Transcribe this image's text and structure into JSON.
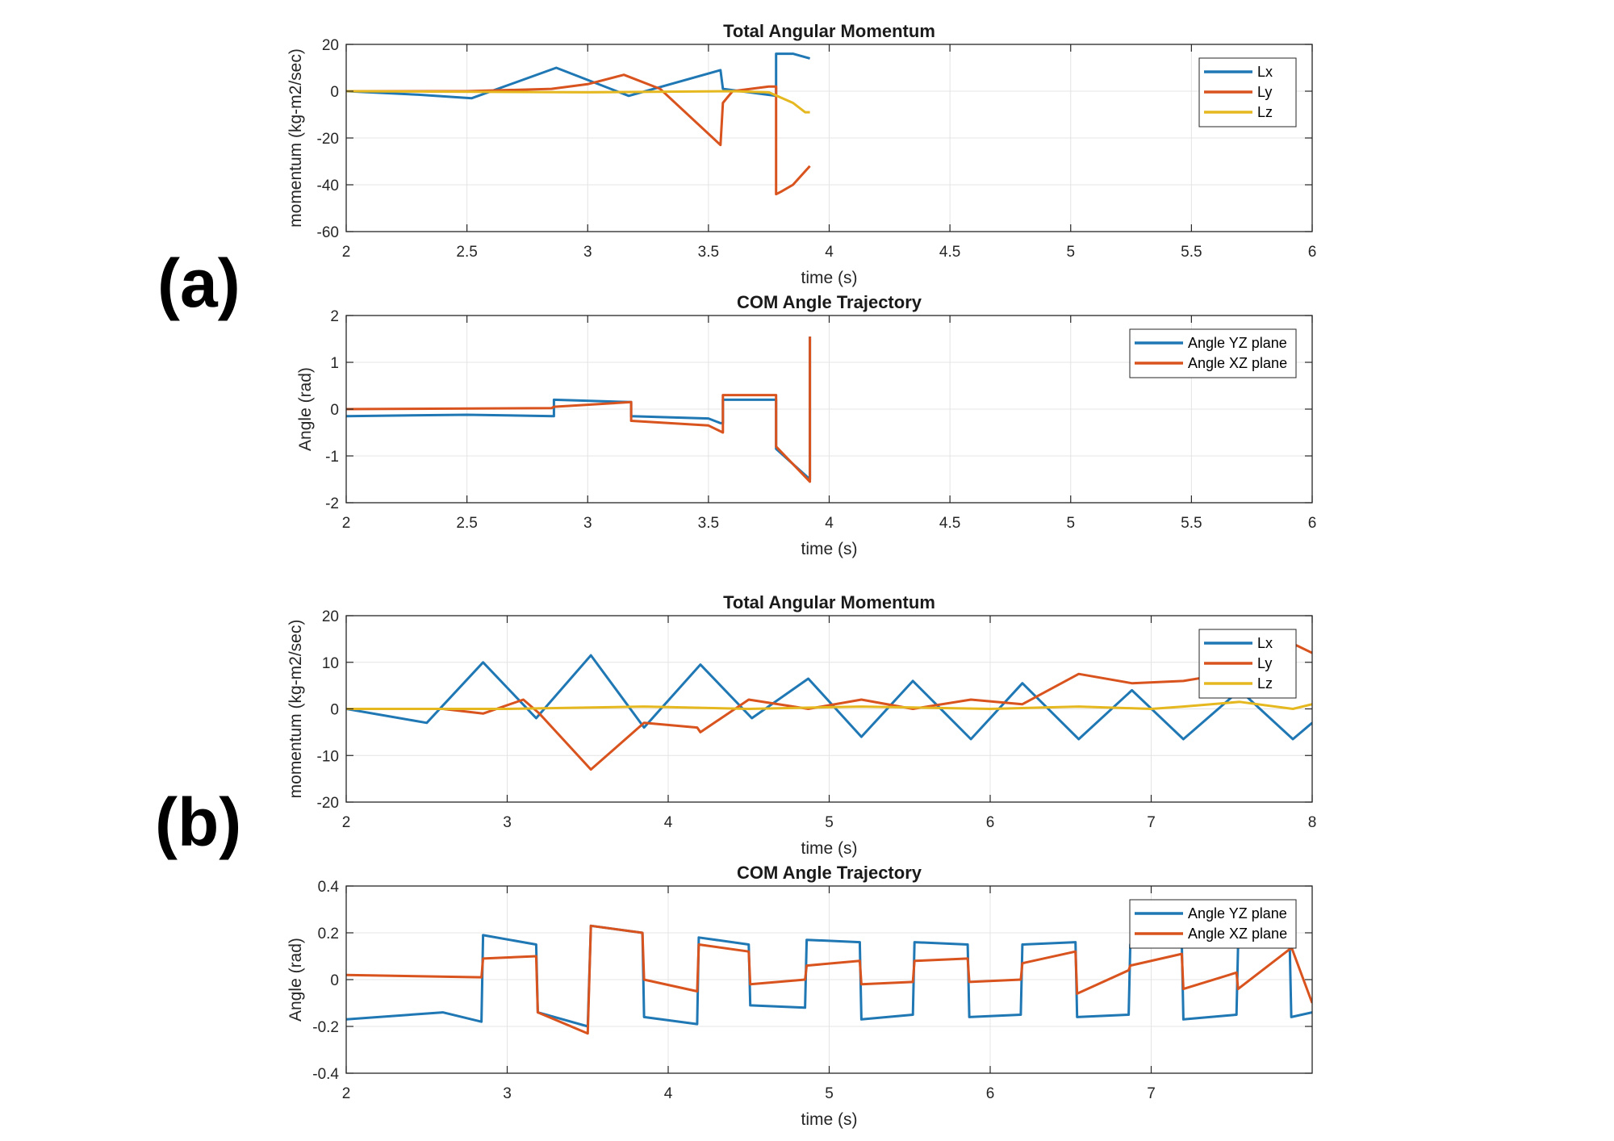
{
  "panel_labels": [
    "(a)",
    "(b)"
  ],
  "colors": {
    "Lx": "#1f77b4",
    "Ly": "#d9531e",
    "Lz": "#e6b820",
    "yz": "#1f77b4",
    "xz": "#d9531e",
    "grid": "#e4e4e4",
    "axis": "#262626"
  },
  "chart_data": [
    {
      "type": "line",
      "title": "Total Angular Momentum",
      "xlabel": "time (s)",
      "ylabel": "momentum (kg-m2/sec)",
      "xlim": [
        2,
        6
      ],
      "ylim": [
        -60,
        20
      ],
      "xticks": [
        2,
        2.5,
        3,
        3.5,
        4,
        4.5,
        5,
        5.5,
        6
      ],
      "yticks": [
        -60,
        -40,
        -20,
        0,
        20
      ],
      "legend": "top-right",
      "series": [
        {
          "name": "Lx",
          "color": "Lx",
          "x": [
            2,
            2.3,
            2.52,
            2.87,
            3.17,
            3.55,
            3.56,
            3.78,
            3.78,
            3.85,
            3.92
          ],
          "y": [
            0,
            -1.5,
            -3,
            10,
            -2,
            9,
            1,
            -2,
            16,
            16,
            14
          ]
        },
        {
          "name": "Ly",
          "color": "Ly",
          "x": [
            2,
            2.5,
            2.85,
            3.0,
            3.15,
            3.3,
            3.55,
            3.56,
            3.6,
            3.75,
            3.78,
            3.78,
            3.8,
            3.85,
            3.92
          ],
          "y": [
            0,
            0,
            1,
            3,
            7,
            1,
            -23,
            -5,
            0,
            2,
            2,
            -44,
            -43,
            -40,
            -32
          ]
        },
        {
          "name": "Lz",
          "color": "Lz",
          "x": [
            2,
            3.0,
            3.6,
            3.75,
            3.85,
            3.9,
            3.92
          ],
          "y": [
            0,
            -0.5,
            0,
            -0.5,
            -5,
            -9,
            -9
          ]
        }
      ]
    },
    {
      "type": "line",
      "title": "COM Angle Trajectory",
      "xlabel": "time (s)",
      "ylabel": "Angle (rad)",
      "xlim": [
        2,
        6
      ],
      "ylim": [
        -2,
        2
      ],
      "xticks": [
        2,
        2.5,
        3,
        3.5,
        4,
        4.5,
        5,
        5.5,
        6
      ],
      "yticks": [
        -2,
        -1,
        0,
        1,
        2
      ],
      "legend": "top-right",
      "series": [
        {
          "name": "Angle YZ plane",
          "color": "yz",
          "x": [
            2,
            2.5,
            2.86,
            2.86,
            3.18,
            3.18,
            3.5,
            3.55,
            3.56,
            3.56,
            3.78,
            3.78,
            3.92,
            3.92
          ],
          "y": [
            -0.15,
            -0.12,
            -0.15,
            0.2,
            0.15,
            -0.15,
            -0.2,
            -0.3,
            -0.3,
            0.2,
            0.2,
            -0.85,
            -1.5,
            1.55
          ]
        },
        {
          "name": "Angle XZ plane",
          "color": "xz",
          "x": [
            2,
            2.85,
            2.86,
            3.18,
            3.18,
            3.5,
            3.56,
            3.56,
            3.78,
            3.78,
            3.92,
            3.92
          ],
          "y": [
            0,
            0.02,
            0.05,
            0.15,
            -0.25,
            -0.35,
            -0.5,
            0.3,
            0.3,
            -0.8,
            -1.55,
            1.55
          ]
        }
      ]
    },
    {
      "type": "line",
      "title": "Total Angular Momentum",
      "xlabel": "time (s)",
      "ylabel": "momentum (kg-m2/sec)",
      "xlim": [
        2,
        8
      ],
      "ylim": [
        -20,
        20
      ],
      "xticks": [
        2,
        3,
        4,
        5,
        6,
        7,
        8
      ],
      "yticks": [
        -20,
        -10,
        0,
        10,
        20
      ],
      "legend": "top-right",
      "series": [
        {
          "name": "Lx",
          "color": "Lx",
          "x": [
            2,
            2.5,
            2.85,
            3.18,
            3.52,
            3.85,
            4.2,
            4.52,
            4.87,
            5.2,
            5.52,
            5.88,
            6.2,
            6.55,
            6.88,
            7.2,
            7.55,
            7.88,
            8
          ],
          "y": [
            0,
            -3,
            10,
            -2,
            11.5,
            -4,
            9.5,
            -2,
            6.5,
            -6,
            6,
            -6.5,
            5.5,
            -6.5,
            4,
            -6.5,
            4,
            -6.5,
            -3
          ]
        },
        {
          "name": "Ly",
          "color": "Ly",
          "x": [
            2,
            2.6,
            2.85,
            3.1,
            3.2,
            3.52,
            3.85,
            4.18,
            4.2,
            4.5,
            4.87,
            5.2,
            5.52,
            5.88,
            6.2,
            6.55,
            6.88,
            7.2,
            7.55,
            7.88,
            8
          ],
          "y": [
            0,
            0,
            -1,
            2,
            -1,
            -13,
            -3,
            -4,
            -5,
            2,
            0,
            2,
            0,
            2,
            1,
            7.5,
            5.5,
            6,
            8,
            14,
            12
          ]
        },
        {
          "name": "Lz",
          "color": "Lz",
          "x": [
            2,
            3,
            3.85,
            4.5,
            5.2,
            6,
            6.55,
            7,
            7.2,
            7.55,
            7.88,
            8
          ],
          "y": [
            0,
            0,
            0.5,
            0,
            0.5,
            0,
            0.5,
            0,
            0.5,
            1.5,
            0,
            1
          ]
        }
      ]
    },
    {
      "type": "line",
      "title": "COM Angle Trajectory",
      "xlabel": "time (s)",
      "ylabel": "Angle (rad)",
      "xlim": [
        2,
        8
      ],
      "ylim": [
        -0.4,
        0.4
      ],
      "xticks": [
        2,
        3,
        4,
        5,
        6,
        7
      ],
      "yticks": [
        -0.4,
        -0.2,
        0,
        0.2,
        0.4
      ],
      "legend": "top-right",
      "series": [
        {
          "name": "Angle YZ plane",
          "color": "yz",
          "x": [
            2,
            2.6,
            2.84,
            2.85,
            3.18,
            3.19,
            3.5,
            3.52,
            3.84,
            3.85,
            4.18,
            4.19,
            4.5,
            4.51,
            4.85,
            4.86,
            5.19,
            5.2,
            5.52,
            5.53,
            5.86,
            5.87,
            6.19,
            6.2,
            6.53,
            6.54,
            6.86,
            6.87,
            7.19,
            7.2,
            7.53,
            7.54,
            7.86,
            7.87,
            8
          ],
          "y": [
            -0.17,
            -0.14,
            -0.18,
            0.19,
            0.15,
            -0.14,
            -0.2,
            0.23,
            0.2,
            -0.16,
            -0.19,
            0.18,
            0.15,
            -0.11,
            -0.12,
            0.17,
            0.16,
            -0.17,
            -0.15,
            0.16,
            0.15,
            -0.16,
            -0.15,
            0.15,
            0.16,
            -0.16,
            -0.15,
            0.15,
            0.16,
            -0.17,
            -0.15,
            0.15,
            0.16,
            -0.16,
            -0.14
          ]
        },
        {
          "name": "Angle XZ plane",
          "color": "xz",
          "x": [
            2,
            2.84,
            2.85,
            3.18,
            3.19,
            3.5,
            3.52,
            3.84,
            3.85,
            4.18,
            4.19,
            4.5,
            4.51,
            4.85,
            4.86,
            5.19,
            5.2,
            5.52,
            5.53,
            5.86,
            5.87,
            6.19,
            6.2,
            6.53,
            6.54,
            6.86,
            6.87,
            7.19,
            7.2,
            7.53,
            7.54,
            7.86,
            7.87,
            8
          ],
          "y": [
            0.02,
            0.01,
            0.09,
            0.1,
            -0.14,
            -0.23,
            0.23,
            0.2,
            0.0,
            -0.05,
            0.15,
            0.12,
            -0.02,
            0.0,
            0.06,
            0.08,
            -0.02,
            -0.01,
            0.08,
            0.09,
            -0.01,
            0.0,
            0.07,
            0.12,
            -0.06,
            0.04,
            0.06,
            0.11,
            -0.04,
            0.03,
            -0.04,
            0.13,
            0.14,
            -0.1
          ]
        }
      ]
    }
  ]
}
